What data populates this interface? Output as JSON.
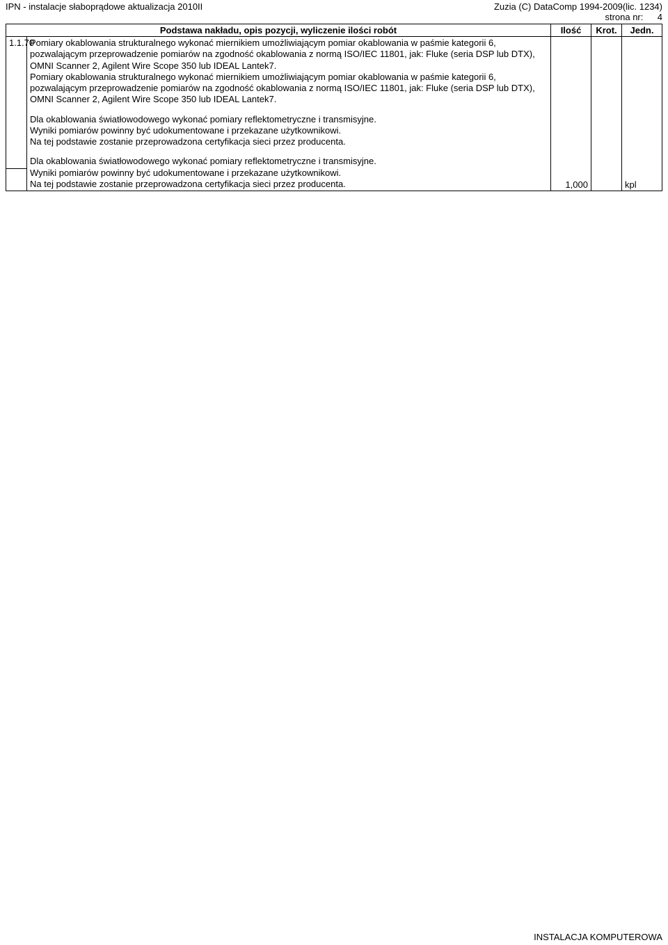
{
  "header": {
    "left": "IPN - instalacje słaboprądowe aktualizacja 2010II",
    "right": "Zuzia (C) DataComp 1994-2009(lic. 1234)",
    "page_label": "strona nr:",
    "page_number": "4"
  },
  "columns": {
    "desc": "Podstawa nakładu, opis pozycji, wyliczenie ilości robót",
    "qty": "Ilość",
    "krot": "Krot.",
    "unit": "Jedn."
  },
  "row": {
    "num": "1.1.70",
    "p1": "Pomiary okablowania strukturalnego wykonać miernikiem umożliwiającym pomiar okablowania w paśmie kategorii 6, pozwalającym przeprowadzenie pomiarów na zgodność okablowania z normą ISO/IEC 11801, jak: Fluke (seria DSP lub DTX), OMNI Scanner 2, Agilent Wire Scope 350 lub IDEAL Lantek7.",
    "p2": "Pomiary okablowania strukturalnego wykonać miernikiem umożliwiającym pomiar okablowania w paśmie kategorii 6, pozwalającym przeprowadzenie pomiarów na zgodność okablowania z normą ISO/IEC 11801, jak: Fluke (seria DSP lub DTX), OMNI Scanner 2, Agilent Wire Scope 350 lub IDEAL Lantek7.",
    "p3": "Dla okablowania światłowodowego wykonać pomiary reflektometryczne i transmisyjne.",
    "p4": "Wyniki pomiarów powinny być udokumentowane i przekazane użytkownikowi.",
    "p5": "Na tej podstawie zostanie przeprowadzona certyfikacja sieci przez producenta.",
    "p6": "Dla okablowania światłowodowego wykonać pomiary reflektometryczne i transmisyjne.",
    "p7": "Wyniki pomiarów powinny być udokumentowane i przekazane użytkownikowi.",
    "p8": "Na tej podstawie zostanie przeprowadzona certyfikacja sieci przez producenta.",
    "qty": "1,000",
    "unit": "kpl"
  },
  "footer": "INSTALACJA KOMPUTEROWA"
}
